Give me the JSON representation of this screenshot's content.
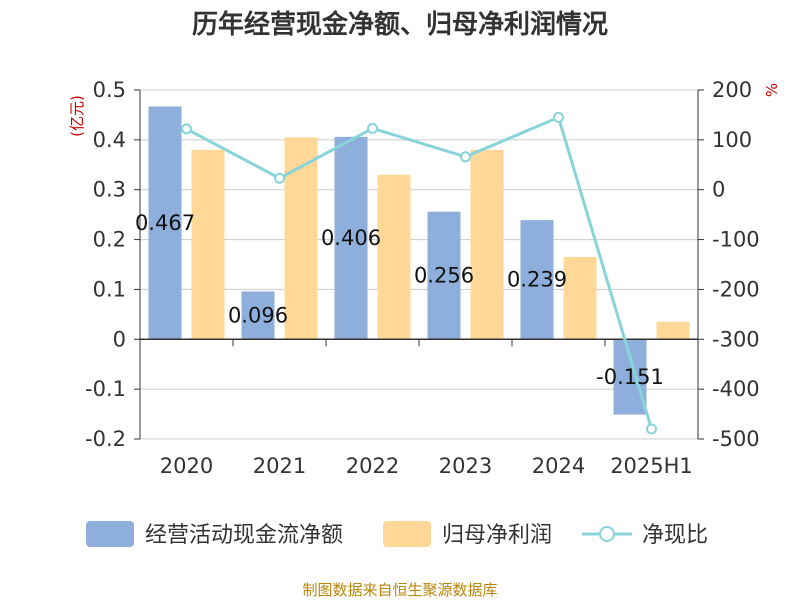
{
  "chart_data": {
    "type": "bar",
    "title": "历年经营现金净额、归母净利润情况",
    "categories": [
      "2020",
      "2021",
      "2022",
      "2023",
      "2024",
      "2025H1"
    ],
    "y_left": {
      "unit": "(亿元)",
      "min": -0.2,
      "max": 0.5,
      "ticks": [
        "0.5",
        "0.4",
        "0.3",
        "0.2",
        "0.1",
        "0",
        "-0.1",
        "-0.2"
      ]
    },
    "y_right": {
      "unit": "%",
      "min": -500,
      "max": 200,
      "ticks": [
        "200",
        "100",
        "0",
        "-100",
        "-200",
        "-300",
        "-400",
        "-500"
      ]
    },
    "series": [
      {
        "name": "经营活动现金流净额",
        "type": "bar",
        "axis": "left",
        "color": "#8eaedc",
        "values": [
          0.467,
          0.096,
          0.406,
          0.256,
          0.239,
          -0.151
        ],
        "labels": [
          "0.467",
          "0.096",
          "0.406",
          "0.256",
          "0.239",
          "-0.151"
        ]
      },
      {
        "name": "归母净利润",
        "type": "bar",
        "axis": "left",
        "color": "#ffd898",
        "values": [
          0.38,
          0.405,
          0.33,
          0.38,
          0.165,
          0.035
        ]
      },
      {
        "name": "净现比",
        "type": "line",
        "axis": "right",
        "color": "#88d4d8",
        "values": [
          122,
          23,
          123,
          66,
          145,
          -480
        ]
      }
    ],
    "grid": true,
    "legend_position": "bottom"
  },
  "source": "制图数据来自恒生聚源数据库"
}
